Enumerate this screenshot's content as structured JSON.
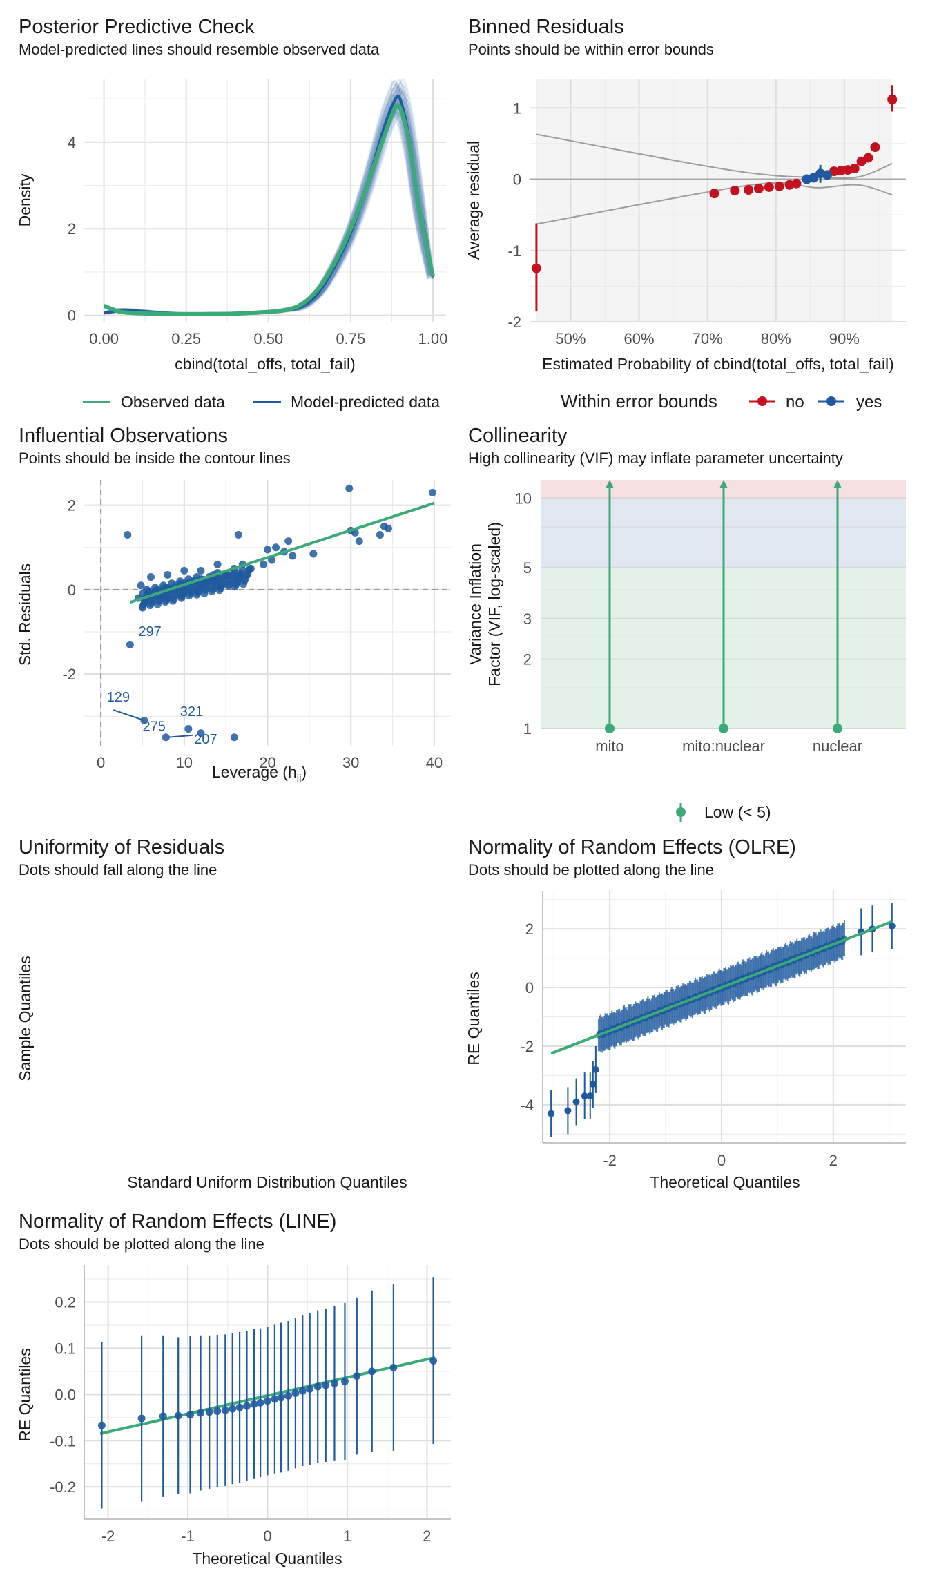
{
  "colors": {
    "observed": "#3aaa78",
    "predicted": "#1f5a9e",
    "no": "#c3111f",
    "yes": "#1f5a9e",
    "low_band": "#e3f1e8",
    "mod_band": "#e0e7f1",
    "high_band": "#f7e0e2",
    "line_green": "#3aaa78"
  },
  "chart_data": [
    {
      "type": "line",
      "title": "Posterior Predictive Check",
      "subtitle": "Model-predicted lines should resemble observed data",
      "xlabel": "cbind(total_offs, total_fail)",
      "ylabel": "Density",
      "xlim": [
        0,
        1
      ],
      "ylim": [
        0,
        5.3
      ],
      "x_ticks": [
        "0.00",
        "0.25",
        "0.50",
        "0.75",
        "1.00"
      ],
      "y_ticks": [
        "0",
        "2",
        "4"
      ],
      "legend": [
        "Observed data",
        "Model-predicted data"
      ],
      "series": [
        {
          "name": "Observed data",
          "x": [
            0,
            0.02,
            0.05,
            0.1,
            0.2,
            0.3,
            0.4,
            0.5,
            0.55,
            0.6,
            0.65,
            0.7,
            0.75,
            0.8,
            0.85,
            0.88,
            0.9,
            0.93,
            0.96,
            1.0
          ],
          "y": [
            0.22,
            0.16,
            0.08,
            0.05,
            0.03,
            0.03,
            0.04,
            0.08,
            0.12,
            0.25,
            0.6,
            1.2,
            2.0,
            3.0,
            4.1,
            4.7,
            4.8,
            3.9,
            2.4,
            0.9
          ]
        },
        {
          "name": "Model-predicted data",
          "x": [
            0,
            0.02,
            0.05,
            0.1,
            0.2,
            0.3,
            0.4,
            0.5,
            0.55,
            0.6,
            0.65,
            0.7,
            0.75,
            0.8,
            0.85,
            0.88,
            0.9,
            0.93,
            0.96,
            1.0
          ],
          "y": [
            0.05,
            0.08,
            0.12,
            0.1,
            0.05,
            0.03,
            0.04,
            0.07,
            0.12,
            0.2,
            0.5,
            1.1,
            1.9,
            3.0,
            4.3,
            4.9,
            5.0,
            4.0,
            2.4,
            0.9
          ]
        }
      ]
    },
    {
      "type": "scatter",
      "title": "Binned Residuals",
      "subtitle": "Points should be within error bounds",
      "xlabel": "Estimated Probability of cbind(total_offs, total_fail)",
      "ylabel": "Average residual",
      "xlim": [
        0.44,
        0.99
      ],
      "ylim": [
        -2,
        1.4
      ],
      "x_ticks": [
        "50%",
        "60%",
        "70%",
        "80%",
        "90%"
      ],
      "y_ticks": [
        "-2",
        "-1",
        "0",
        "1"
      ],
      "legend_title": "Within error bounds",
      "legend": [
        "no",
        "yes"
      ],
      "points_no": [
        [
          0.45,
          -1.25
        ],
        [
          0.71,
          -0.2
        ],
        [
          0.74,
          -0.16
        ],
        [
          0.76,
          -0.15
        ],
        [
          0.775,
          -0.13
        ],
        [
          0.79,
          -0.11
        ],
        [
          0.805,
          -0.1
        ],
        [
          0.82,
          -0.08
        ],
        [
          0.83,
          -0.06
        ],
        [
          0.885,
          0.11
        ],
        [
          0.895,
          0.12
        ],
        [
          0.905,
          0.13
        ],
        [
          0.915,
          0.15
        ],
        [
          0.925,
          0.25
        ],
        [
          0.935,
          0.3
        ],
        [
          0.945,
          0.45
        ],
        [
          0.97,
          1.12
        ]
      ],
      "points_yes": [
        [
          0.845,
          0.0
        ],
        [
          0.855,
          0.02
        ],
        [
          0.865,
          0.08
        ],
        [
          0.875,
          0.06
        ]
      ],
      "error_bars": [
        [
          0.45,
          -1.85,
          -0.62
        ],
        [
          0.97,
          0.95,
          1.32
        ]
      ],
      "bound_upper": [
        [
          0.45,
          0.63
        ],
        [
          0.7,
          0.18
        ],
        [
          0.8,
          0.05
        ],
        [
          0.86,
          0.03
        ],
        [
          0.92,
          0.03
        ],
        [
          0.97,
          0.22
        ]
      ],
      "bound_lower": [
        [
          0.45,
          -0.63
        ],
        [
          0.7,
          -0.18
        ],
        [
          0.8,
          -0.05
        ],
        [
          0.86,
          -0.12
        ],
        [
          0.92,
          -0.08
        ],
        [
          0.97,
          -0.22
        ]
      ]
    },
    {
      "type": "scatter",
      "title": "Influential Observations",
      "subtitle": "Points should be inside the contour lines",
      "xlabel": "Leverage (h",
      "xlabel_sub": "ii",
      "xlabel_end": ")",
      "ylabel": "Std. Residuals",
      "xlim": [
        -2,
        42
      ],
      "ylim": [
        -3.7,
        2.6
      ],
      "x_ticks": [
        "0",
        "10",
        "20",
        "30",
        "40"
      ],
      "y_ticks": [
        "-2",
        "0",
        "2"
      ],
      "points": [
        [
          3.2,
          1.3
        ],
        [
          3.5,
          -1.3
        ],
        [
          5.2,
          -3.1
        ],
        [
          7.8,
          -3.5
        ],
        [
          10.5,
          -3.3
        ],
        [
          12,
          -3.4
        ],
        [
          16,
          -3.5
        ],
        [
          4.5,
          -0.2
        ],
        [
          5,
          -0.1
        ],
        [
          5.5,
          0.0
        ],
        [
          6,
          -0.1
        ],
        [
          6.5,
          0.05
        ],
        [
          7,
          0.0
        ],
        [
          7.5,
          0.1
        ],
        [
          8,
          0.05
        ],
        [
          8.5,
          0.15
        ],
        [
          9,
          0.1
        ],
        [
          9.5,
          0.2
        ],
        [
          10,
          0.15
        ],
        [
          10.5,
          0.25
        ],
        [
          11,
          0.2
        ],
        [
          11.5,
          0.3
        ],
        [
          12,
          0.25
        ],
        [
          12.5,
          0.2
        ],
        [
          13,
          0.3
        ],
        [
          13.5,
          0.35
        ],
        [
          14,
          0.4
        ],
        [
          15,
          0.35
        ],
        [
          16,
          0.5
        ],
        [
          16.5,
          1.3
        ],
        [
          17,
          0.6
        ],
        [
          18,
          0.5
        ],
        [
          19.5,
          0.6
        ],
        [
          20,
          0.95
        ],
        [
          20.5,
          0.7
        ],
        [
          21,
          1.0
        ],
        [
          22,
          0.9
        ],
        [
          22.5,
          1.15
        ],
        [
          23,
          0.8
        ],
        [
          25.5,
          0.85
        ],
        [
          29.8,
          2.4
        ],
        [
          30,
          1.4
        ],
        [
          30.5,
          1.35
        ],
        [
          31,
          1.15
        ],
        [
          33.5,
          1.3
        ],
        [
          34,
          1.5
        ],
        [
          34.5,
          1.45
        ],
        [
          39.8,
          2.3
        ],
        [
          6,
          0.3
        ],
        [
          8,
          0.35
        ],
        [
          10,
          0.45
        ],
        [
          12,
          0.45
        ],
        [
          14,
          0.6
        ],
        [
          4.8,
          0.1
        ]
      ],
      "fit_line": [
        [
          3.5,
          -0.3
        ],
        [
          40,
          2.05
        ]
      ],
      "labels": [
        {
          "text": "297",
          "x": 4.5,
          "y": -1.1
        },
        {
          "text": "129",
          "x": 0.7,
          "y": -2.65
        },
        {
          "text": "275",
          "x": 5,
          "y": -3.35
        },
        {
          "text": "321",
          "x": 9.5,
          "y": -3.0
        },
        {
          "text": "207",
          "x": 11.2,
          "y": -3.65
        }
      ]
    },
    {
      "type": "scatter",
      "title": "Collinearity",
      "subtitle": "High collinearity (VIF) may inflate parameter uncertainty",
      "ylabel": "Variance Inflation",
      "ylabel2": "Factor (VIF, log-scaled)",
      "categories": [
        "mito",
        "mito:nuclear",
        "nuclear"
      ],
      "values": [
        1.0,
        1.0,
        1.0
      ],
      "ylim": [
        1,
        12
      ],
      "y_ticks": [
        "1",
        "2",
        "3",
        "5",
        "10"
      ],
      "y_tick_values": [
        1,
        2,
        3,
        5,
        10
      ],
      "legend": [
        "Low (< 5)"
      ]
    },
    {
      "type": "scatter",
      "title": "Uniformity of Residuals",
      "subtitle": "Dots should fall along the line",
      "xlabel": "Standard Uniform Distribution Quantiles",
      "ylabel": "Sample Quantiles"
    },
    {
      "type": "scatter",
      "title": "Normality of Random Effects (OLRE)",
      "subtitle": "Dots should be plotted along the line",
      "xlabel": "Theoretical Quantiles",
      "ylabel": "RE Quantiles",
      "xlim": [
        -3.2,
        3.3
      ],
      "ylim": [
        -5.3,
        3.3
      ],
      "x_ticks": [
        "-2",
        "0",
        "2"
      ],
      "y_ticks": [
        "-4",
        "-2",
        "0",
        "2"
      ],
      "fit_line": [
        [
          -3.05,
          -2.25
        ],
        [
          3.05,
          2.25
        ]
      ],
      "tail_points": [
        [
          -3.05,
          -4.3
        ],
        [
          -2.75,
          -4.2
        ],
        [
          -2.6,
          -3.9
        ],
        [
          -2.45,
          -3.7
        ],
        [
          -2.35,
          -3.7
        ],
        [
          -2.3,
          -3.3
        ],
        [
          -2.25,
          -2.8
        ],
        [
          2.5,
          1.9
        ],
        [
          2.7,
          2.0
        ],
        [
          3.05,
          2.1
        ]
      ]
    },
    {
      "type": "scatter",
      "title": "Normality of Random Effects (LINE)",
      "subtitle": "Dots should be plotted along the line",
      "xlabel": "Theoretical Quantiles",
      "ylabel": "RE Quantiles",
      "xlim": [
        -2.3,
        2.3
      ],
      "ylim": [
        -0.27,
        0.28
      ],
      "x_ticks": [
        "-2",
        "-1",
        "0",
        "1",
        "2"
      ],
      "y_ticks": [
        "-0.2",
        "-0.1",
        "0.0",
        "0.1",
        "0.2"
      ],
      "fit_line": [
        [
          -2.1,
          -0.085
        ],
        [
          2.1,
          0.08
        ]
      ],
      "x": [
        -2.08,
        -1.58,
        -1.31,
        -1.12,
        -0.97,
        -0.84,
        -0.73,
        -0.63,
        -0.53,
        -0.44,
        -0.35,
        -0.26,
        -0.17,
        -0.09,
        0.0,
        0.09,
        0.17,
        0.26,
        0.35,
        0.44,
        0.53,
        0.63,
        0.73,
        0.84,
        0.97,
        1.12,
        1.31,
        1.58,
        2.08
      ],
      "y": [
        -0.067,
        -0.052,
        -0.047,
        -0.046,
        -0.044,
        -0.04,
        -0.038,
        -0.036,
        -0.034,
        -0.031,
        -0.028,
        -0.025,
        -0.021,
        -0.018,
        -0.014,
        -0.01,
        -0.007,
        -0.003,
        0.003,
        0.008,
        0.012,
        0.017,
        0.02,
        0.024,
        0.028,
        0.04,
        0.05,
        0.058,
        0.073
      ],
      "err": [
        0.18,
        0.18,
        0.175,
        0.17,
        0.17,
        0.168,
        0.166,
        0.165,
        0.164,
        0.163,
        0.163,
        0.162,
        0.162,
        0.161,
        0.161,
        0.161,
        0.162,
        0.162,
        0.163,
        0.163,
        0.164,
        0.165,
        0.166,
        0.168,
        0.17,
        0.17,
        0.175,
        0.18,
        0.18
      ]
    }
  ]
}
